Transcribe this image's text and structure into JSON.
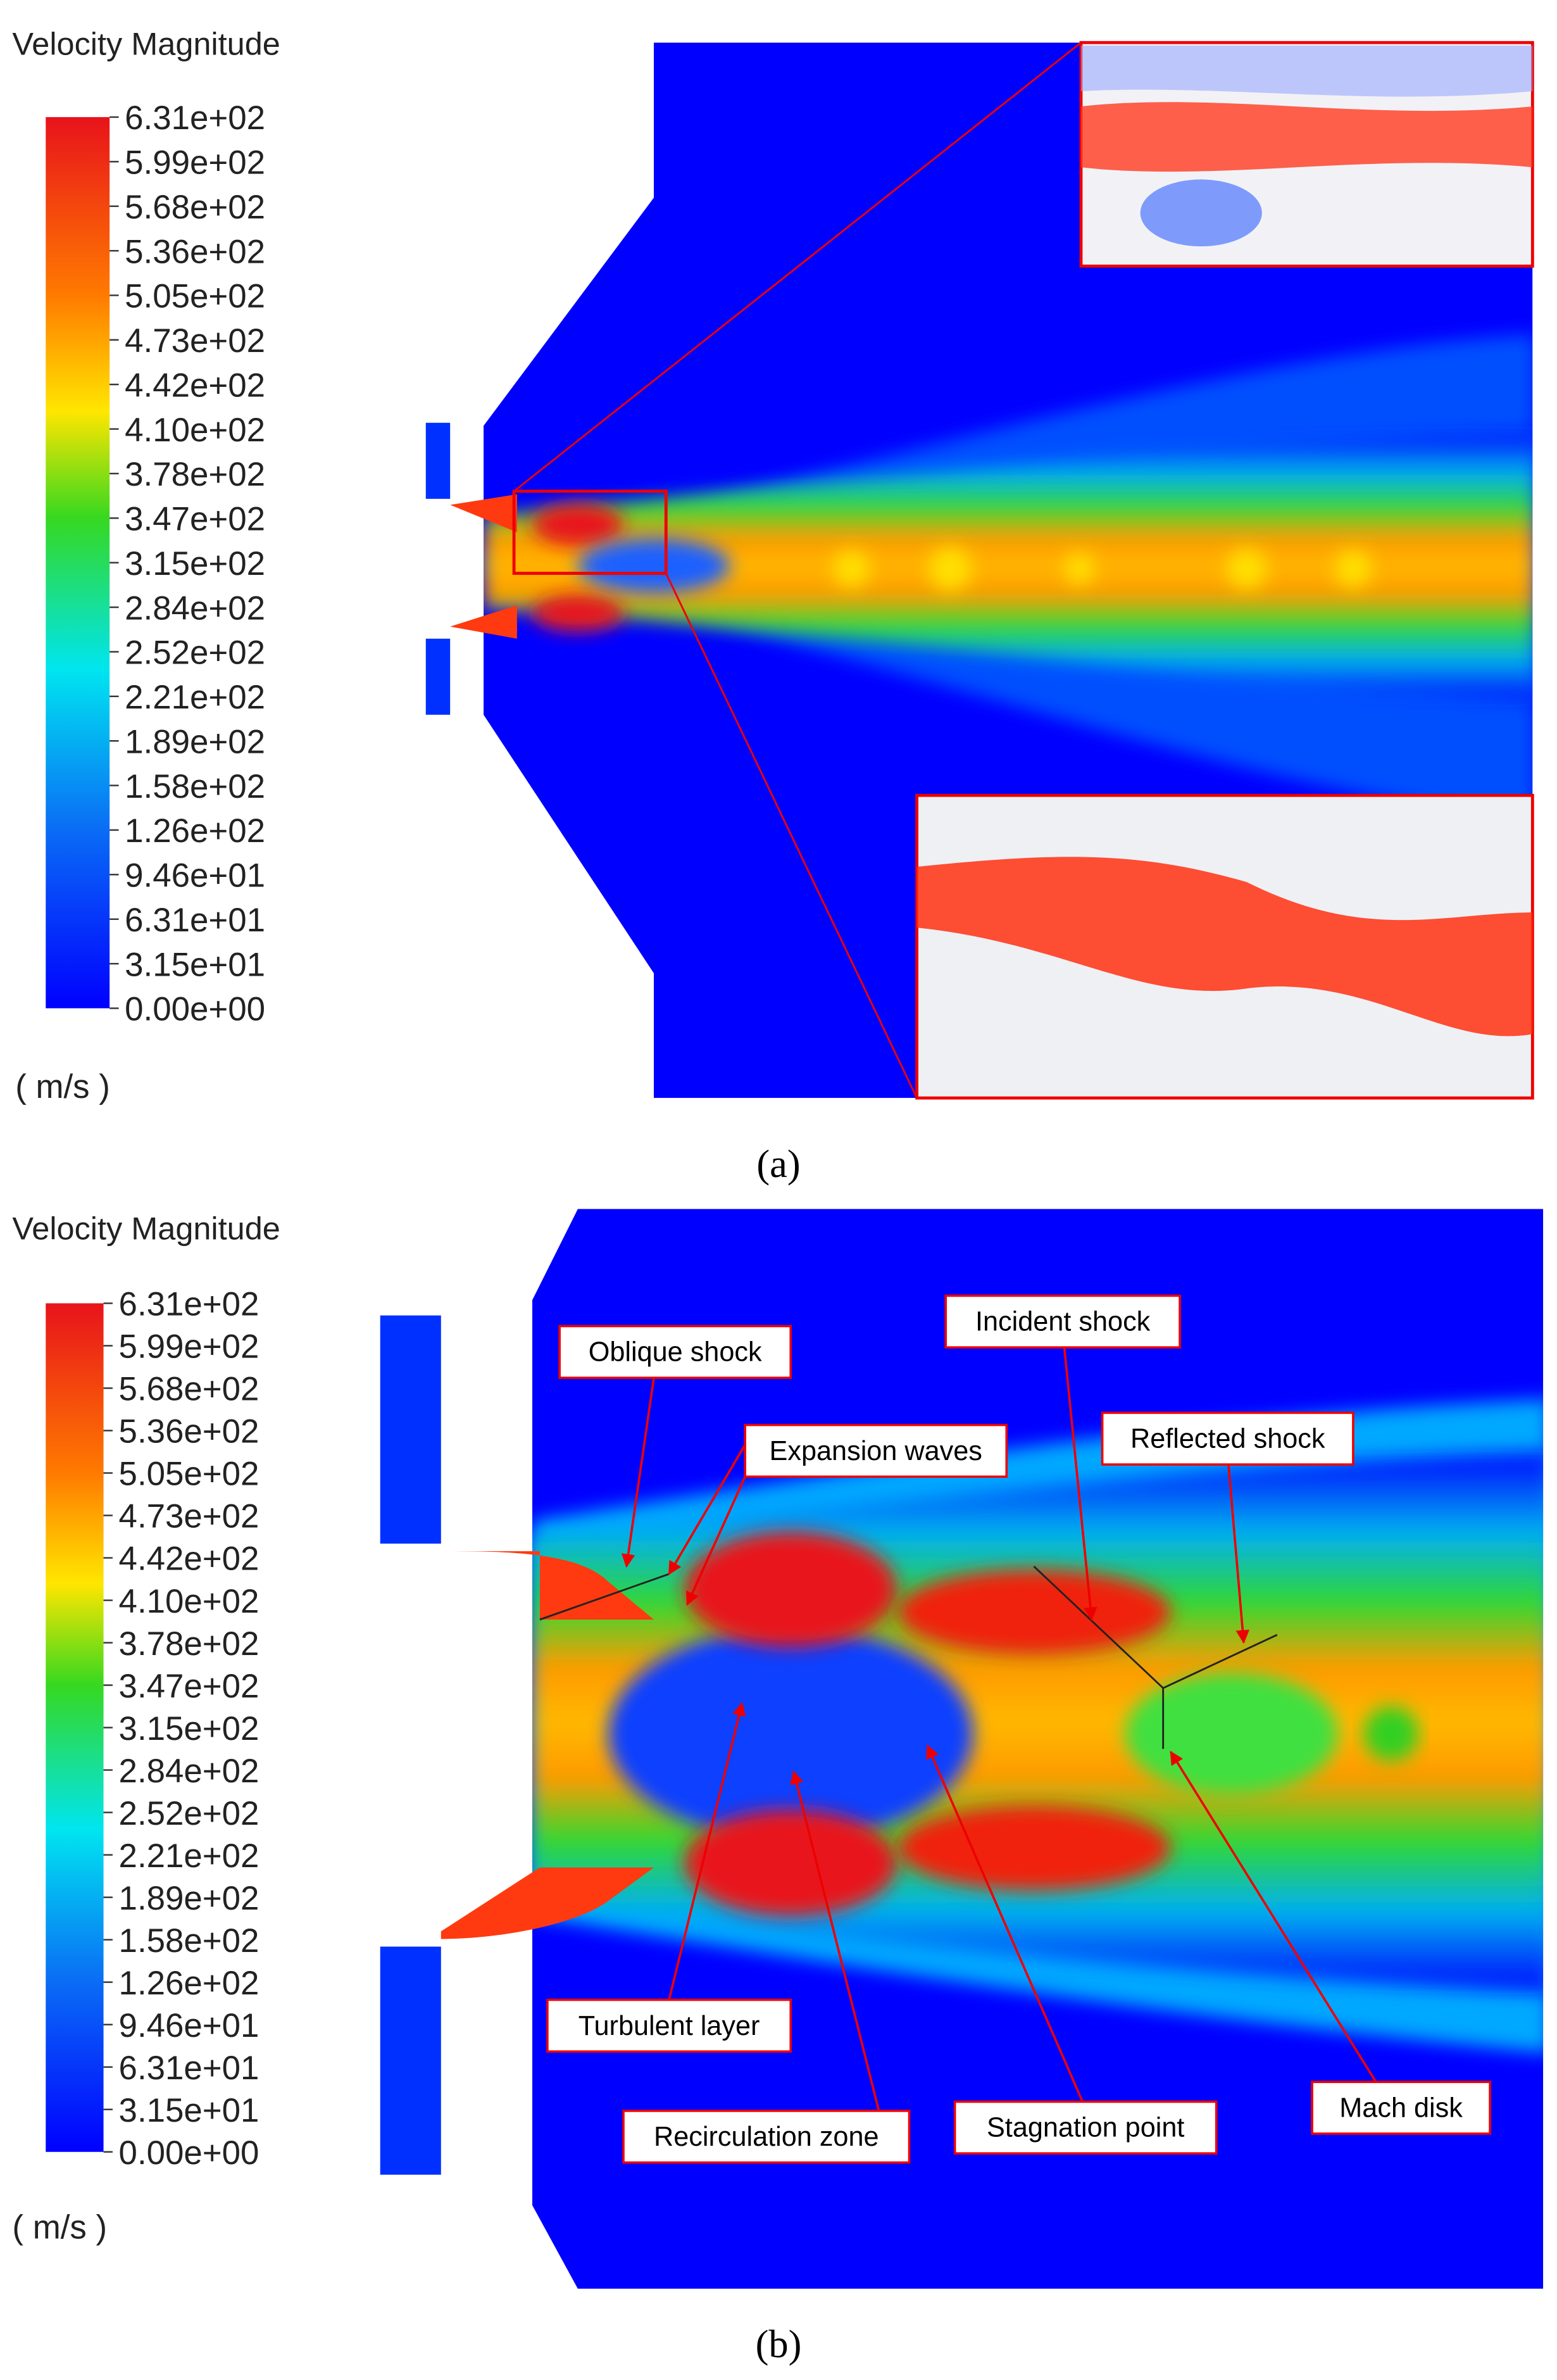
{
  "panels": [
    {
      "colorbar": {
        "title": "Velocity Magnitude",
        "ticks": [
          "6.31e+02",
          "5.99e+02",
          "5.68e+02",
          "5.36e+02",
          "5.05e+02",
          "4.73e+02",
          "4.42e+02",
          "4.10e+02",
          "3.78e+02",
          "3.47e+02",
          "3.15e+02",
          "2.84e+02",
          "2.52e+02",
          "2.21e+02",
          "1.89e+02",
          "1.58e+02",
          "1.26e+02",
          "9.46e+01",
          "6.31e+01",
          "3.15e+01",
          "0.00e+00"
        ],
        "unit": "( m/s )"
      },
      "caption": "(a)"
    },
    {
      "colorbar": {
        "title": "Velocity Magnitude",
        "ticks": [
          "6.31e+02",
          "5.99e+02",
          "5.68e+02",
          "5.36e+02",
          "5.05e+02",
          "4.73e+02",
          "4.42e+02",
          "4.10e+02",
          "3.78e+02",
          "3.47e+02",
          "3.15e+02",
          "2.84e+02",
          "2.52e+02",
          "2.21e+02",
          "1.89e+02",
          "1.58e+02",
          "1.26e+02",
          "9.46e+01",
          "6.31e+01",
          "3.15e+01",
          "0.00e+00"
        ],
        "unit": "( m/s )"
      },
      "caption": "(b)",
      "annotations": [
        "Oblique shock",
        "Expansion waves",
        "Incident shock",
        "Reflected shock",
        "Turbulent layer",
        "Recirculation zone",
        "Stagnation point",
        "Mach disk"
      ]
    }
  ]
}
